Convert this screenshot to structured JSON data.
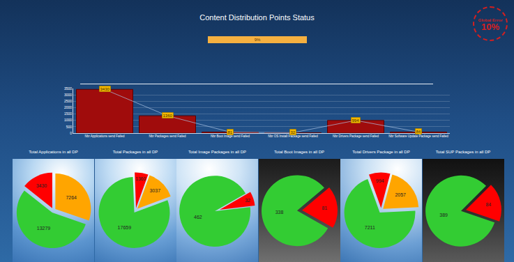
{
  "title": "Content Distribution Points Status",
  "progress_label": "9%",
  "badge": {
    "text": "Global Error",
    "value_label": "10%"
  },
  "chart_data": [
    {
      "type": "bar",
      "categories": [
        "Nbr Applications send Failed",
        "Nbr Packages send Failed",
        "Nbr Boot Image send Failed",
        "Nbr OS Install Package send Failed",
        "Nbr Drivers Package send Failed",
        "Nbr Software Update Package send Failed"
      ],
      "values": [
        3430,
        1360,
        81,
        32,
        994,
        84
      ],
      "color": "#a00c0c",
      "ylim": [
        0,
        3500
      ],
      "yticks": [
        0,
        500,
        1000,
        1500,
        2000,
        2500,
        3000,
        3500
      ],
      "grid": true,
      "data_labels": true
    },
    {
      "type": "pie",
      "title": "Total Applications in all DP",
      "values": [
        7264,
        13279,
        3430
      ],
      "colors": [
        "#ffa500",
        "#33cc33",
        "#ff0000"
      ],
      "data_labels": true
    },
    {
      "type": "pie",
      "title": "Total Packages in all DP",
      "values": [
        3037,
        17659,
        1360
      ],
      "colors": [
        "#ffa500",
        "#33cc33",
        "#ff0000"
      ],
      "data_labels": true
    },
    {
      "type": "pie",
      "title": "Total Image Packages in all DP",
      "values": [
        32,
        462
      ],
      "colors": [
        "#ff0000",
        "#33cc33"
      ],
      "data_labels": true
    },
    {
      "type": "pie",
      "title": "Total Boot Images in all DP",
      "values": [
        81,
        338
      ],
      "colors": [
        "#ff0000",
        "#33cc33"
      ],
      "data_labels": true
    },
    {
      "type": "pie",
      "title": "Total Drivers Package in all DP",
      "values": [
        2057,
        7211,
        994
      ],
      "colors": [
        "#ffa500",
        "#33cc33",
        "#ff0000"
      ],
      "data_labels": true
    },
    {
      "type": "pie",
      "title": "Total SUP Packages in all DP",
      "values": [
        84,
        389
      ],
      "colors": [
        "#ff0000",
        "#33cc33"
      ],
      "data_labels": true
    }
  ]
}
